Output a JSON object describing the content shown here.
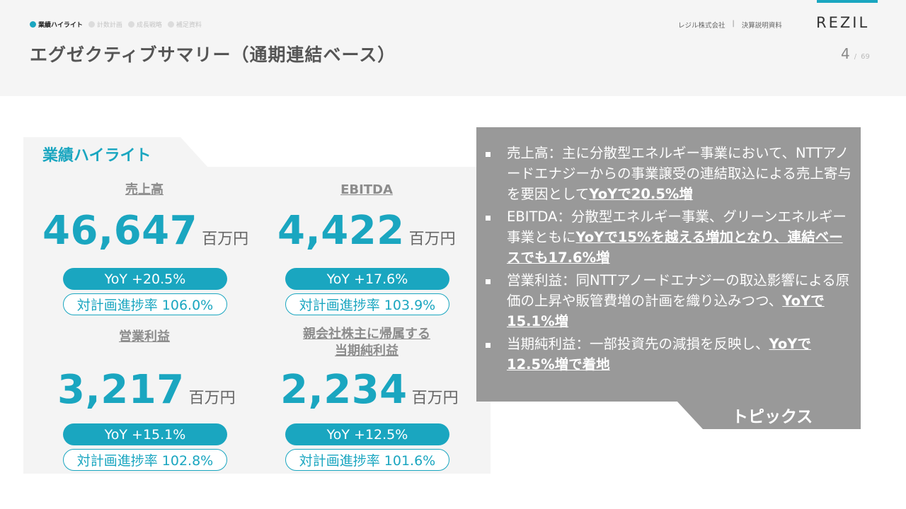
{
  "header": {
    "nav": [
      {
        "label": "業績ハイライト",
        "active": true
      },
      {
        "label": "計数計画",
        "active": false
      },
      {
        "label": "成長戦略",
        "active": false
      },
      {
        "label": "補足資料",
        "active": false
      }
    ],
    "title": "エグゼクティブサマリー（通期連結ベース）",
    "company": "レジル株式会社",
    "separator": "|",
    "doc_type": "決算説明資料",
    "logo": "REZIL",
    "page_current": "4",
    "page_slash": "/",
    "page_total": "69"
  },
  "highlights": {
    "title": "業績ハイライト",
    "metrics": [
      {
        "label": "売上高",
        "value": "46,647",
        "unit": "百万円",
        "yoy": "YoY +20.5%",
        "plan": "対計画進捗率 106.0%"
      },
      {
        "label": "EBITDA",
        "value": "4,422",
        "unit": "百万円",
        "yoy": "YoY +17.6%",
        "plan": "対計画進捗率 103.9%"
      },
      {
        "label": "営業利益",
        "value": "3,217",
        "unit": "百万円",
        "yoy": "YoY +15.1%",
        "plan": "対計画進捗率 102.8%"
      },
      {
        "label_line1": "親会社株主に帰属する",
        "label_line2": "当期純利益",
        "value": "2,234",
        "unit": "百万円",
        "yoy": "YoY +12.5%",
        "plan": "対計画進捗率 101.6%"
      }
    ]
  },
  "topics": {
    "title": "トピックス",
    "bullets": [
      {
        "text": "売上高：主に分散型エネルギー事業において、NTTアノードエナジーからの事業譲受の連結取込による売上寄与を要因として",
        "highlight": "YoYで20.5%増"
      },
      {
        "text": "EBITDA：分散型エネルギー事業、グリーンエネルギー事業ともに",
        "highlight": "YoYで15%を越える増加となり、連結ベースでも17.6%増"
      },
      {
        "text": "営業利益：同NTTアノードエナジーの取込影響による原価の上昇や販管費増の計画を織り込みつつ、",
        "highlight": "YoYで15.1%増"
      },
      {
        "text": "当期純利益：一部投資先の減損を反映し、",
        "highlight": "YoYで12.5%増で着地"
      }
    ]
  }
}
